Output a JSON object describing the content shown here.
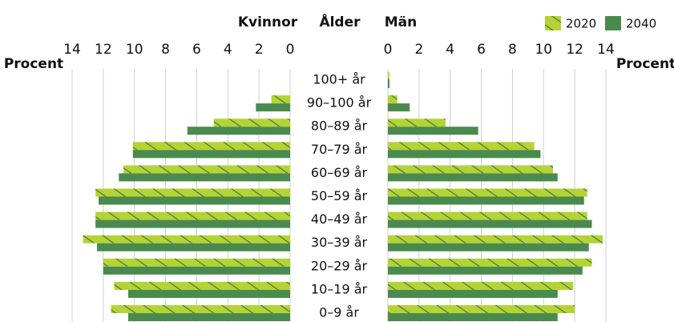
{
  "chart_data": {
    "type": "pyramid",
    "center_label": "Ålder",
    "x_label": "Procent",
    "xlim": [
      0,
      14
    ],
    "xticks": [
      0,
      2,
      4,
      6,
      8,
      10,
      12,
      14
    ],
    "grid": true,
    "legend": "top-right",
    "categories": [
      "100+ år",
      "90–100 år",
      "80–89 år",
      "70–79 år",
      "60–69 år",
      "50–59 år",
      "40–49 år",
      "30–39 år",
      "20–29 år",
      "10–19 år",
      "0–9 år"
    ],
    "left": {
      "label": "Kvinnor",
      "series": [
        {
          "name": "2020",
          "color": "#b5d334",
          "hatch": "#4a8a4f",
          "values": [
            0,
            1.2,
            4.9,
            10.1,
            10.7,
            12.5,
            12.5,
            13.3,
            12.0,
            11.3,
            11.5
          ]
        },
        {
          "name": "2040",
          "color": "#4a8a4f",
          "values": [
            0,
            2.2,
            6.6,
            10.1,
            11.0,
            12.3,
            12.5,
            12.4,
            12.0,
            10.4,
            10.4
          ]
        }
      ]
    },
    "right": {
      "label": "Män",
      "series": [
        {
          "name": "2020",
          "color": "#b5d334",
          "hatch": "#4a8a4f",
          "values": [
            0.1,
            0.6,
            3.7,
            9.4,
            10.6,
            12.8,
            12.8,
            13.8,
            13.1,
            11.9,
            12.0
          ]
        },
        {
          "name": "2040",
          "color": "#4a8a4f",
          "values": [
            0.1,
            1.4,
            5.8,
            9.8,
            10.9,
            12.6,
            13.1,
            12.9,
            12.5,
            10.9,
            10.9
          ]
        }
      ]
    }
  }
}
